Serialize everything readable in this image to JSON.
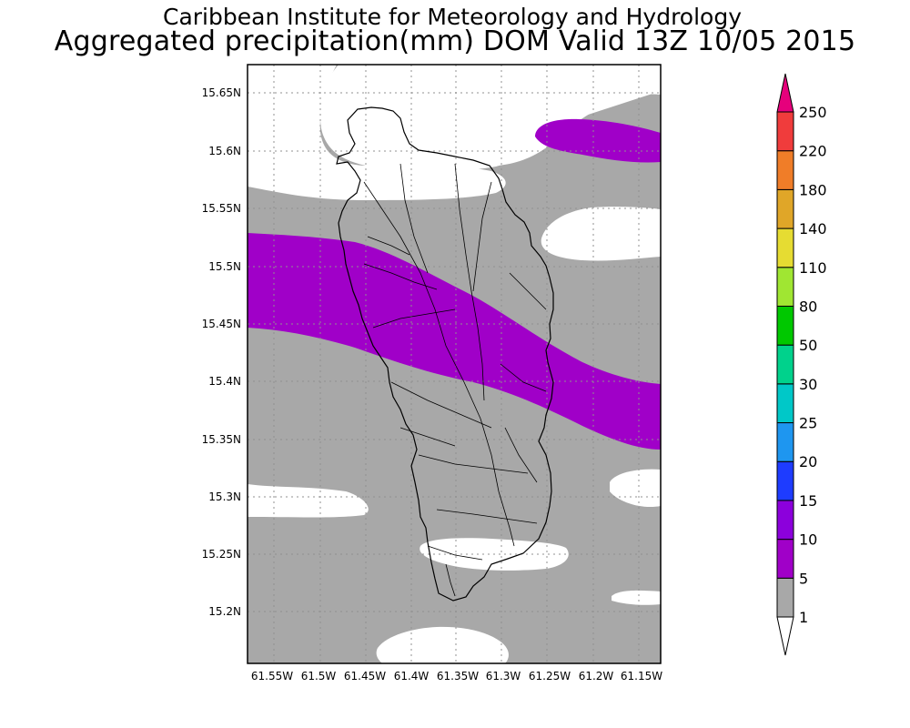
{
  "header": {
    "line1": "Caribbean Institute for Meteorology and Hydrology",
    "line2": "Aggregated precipitation(mm) DOM Valid 13Z 10/05 2015"
  },
  "map": {
    "lat_labels": [
      "15.65N",
      "15.6N",
      "15.55N",
      "15.5N",
      "15.45N",
      "15.4N",
      "15.35N",
      "15.3N",
      "15.25N",
      "15.2N"
    ],
    "lon_labels": [
      "61.55W",
      "61.5W",
      "61.45W",
      "61.4W",
      "61.35W",
      "61.3W",
      "61.25W",
      "61.2W",
      "61.15W"
    ],
    "colors": {
      "band_1_5": "#a8a8a8",
      "band_5_10": "#a000c8",
      "ocean_none": "#ffffff",
      "coast": "#000000"
    }
  },
  "colorbar": {
    "labels": [
      "250",
      "220",
      "180",
      "140",
      "110",
      "80",
      "50",
      "30",
      "25",
      "20",
      "15",
      "10",
      "5",
      "1"
    ],
    "colors": [
      "#f03c3c",
      "#f07d28",
      "#e0a628",
      "#e6dc32",
      "#a0e632",
      "#00c800",
      "#00d28c",
      "#00c8c8",
      "#1e96f0",
      "#1e3cff",
      "#8c00dc",
      "#a000c8",
      "#a8a8a8"
    ],
    "top_arrow_color": "#e6007c",
    "bottom_arrow_color": "#ffffff"
  }
}
